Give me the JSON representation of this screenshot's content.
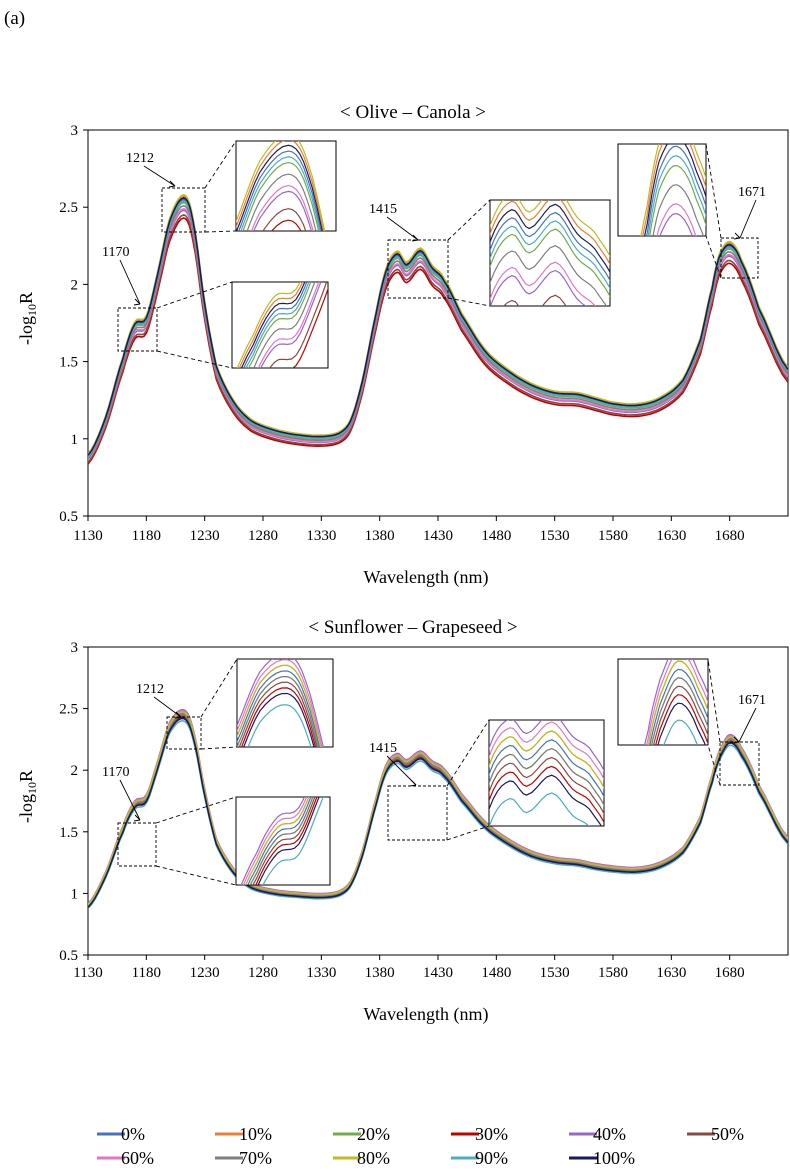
{
  "panel_label": "(a)",
  "legend_labels": [
    "0%",
    "10%",
    "20%",
    "30%",
    "40%",
    "50%",
    "60%",
    "70%",
    "80%",
    "90%",
    "100%"
  ],
  "series_colors": [
    "#4472c4",
    "#ed7d31",
    "#70ad47",
    "#c00000",
    "#9966cc",
    "#8b4a3f",
    "#e377c2",
    "#7f7f7f",
    "#bcbd22",
    "#4bacc6",
    "#1a1a5e"
  ],
  "chart_data": [
    {
      "type": "line",
      "title": "< Olive – Canola >",
      "xlabel": "Wavelength (nm)",
      "ylabel_main": "-log",
      "ylabel_sub": "10",
      "ylabel_tail": "R",
      "xlim": [
        1130,
        1730
      ],
      "ylim": [
        0.5,
        3
      ],
      "xticks": [
        "1130",
        "1180",
        "1230",
        "1280",
        "1330",
        "1380",
        "1430",
        "1480",
        "1530",
        "1580",
        "1630",
        "1680"
      ],
      "yticks": [
        "0.5",
        "1",
        "1.5",
        "2",
        "2.5",
        "3"
      ],
      "annotations": [
        "1170",
        "1212",
        "1415",
        "1671"
      ],
      "base_x": [
        1130,
        1145,
        1160,
        1170,
        1180,
        1190,
        1200,
        1212,
        1220,
        1230,
        1240,
        1255,
        1270,
        1290,
        1310,
        1330,
        1345,
        1355,
        1365,
        1375,
        1385,
        1395,
        1403,
        1415,
        1425,
        1435,
        1450,
        1470,
        1490,
        1510,
        1530,
        1550,
        1565,
        1580,
        1600,
        1620,
        1640,
        1655,
        1665,
        1671,
        1680,
        1690,
        1705,
        1730
      ],
      "base_y": [
        0.88,
        1.12,
        1.5,
        1.72,
        1.76,
        2.05,
        2.38,
        2.53,
        2.38,
        1.85,
        1.45,
        1.22,
        1.1,
        1.04,
        1.01,
        1.0,
        1.02,
        1.1,
        1.35,
        1.72,
        2.05,
        2.17,
        2.1,
        2.19,
        2.08,
        2.0,
        1.78,
        1.55,
        1.42,
        1.33,
        1.28,
        1.27,
        1.24,
        1.21,
        1.2,
        1.24,
        1.36,
        1.62,
        1.95,
        2.15,
        2.23,
        2.12,
        1.82,
        1.43
      ],
      "series": [
        {
          "name": "0%",
          "offset": 0.02
        },
        {
          "name": "10%",
          "offset": 0.04
        },
        {
          "name": "20%",
          "offset": 0.0
        },
        {
          "name": "30%",
          "offset": -0.1
        },
        {
          "name": "40%",
          "offset": -0.05
        },
        {
          "name": "50%",
          "offset": -0.08
        },
        {
          "name": "60%",
          "offset": -0.04
        },
        {
          "name": "70%",
          "offset": -0.02
        },
        {
          "name": "80%",
          "offset": 0.05
        },
        {
          "name": "90%",
          "offset": 0.01
        },
        {
          "name": "100%",
          "offset": 0.03
        }
      ]
    },
    {
      "type": "line",
      "title": "< Sunflower – Grapeseed >",
      "xlabel": "Wavelength (nm)",
      "ylabel_main": "-log",
      "ylabel_sub": "10",
      "ylabel_tail": "R",
      "xlim": [
        1130,
        1730
      ],
      "ylim": [
        0.5,
        3
      ],
      "xticks": [
        "1130",
        "1180",
        "1230",
        "1280",
        "1330",
        "1380",
        "1430",
        "1480",
        "1530",
        "1580",
        "1630",
        "1680"
      ],
      "yticks": [
        "0.5",
        "1",
        "1.5",
        "2",
        "2.5",
        "3"
      ],
      "annotations": [
        "1170",
        "1212",
        "1415",
        "1671"
      ],
      "base_x": [
        1130,
        1145,
        1160,
        1170,
        1180,
        1190,
        1200,
        1212,
        1220,
        1230,
        1240,
        1255,
        1270,
        1290,
        1310,
        1330,
        1345,
        1355,
        1365,
        1375,
        1385,
        1395,
        1403,
        1415,
        1425,
        1435,
        1450,
        1470,
        1490,
        1510,
        1530,
        1550,
        1565,
        1580,
        1600,
        1620,
        1640,
        1655,
        1665,
        1671,
        1680,
        1690,
        1705,
        1730
      ],
      "base_y": [
        0.9,
        1.15,
        1.52,
        1.72,
        1.77,
        2.05,
        2.35,
        2.45,
        2.3,
        1.82,
        1.42,
        1.18,
        1.06,
        1.01,
        0.99,
        0.98,
        1.0,
        1.08,
        1.32,
        1.68,
        2.0,
        2.1,
        2.05,
        2.12,
        2.04,
        1.98,
        1.78,
        1.56,
        1.42,
        1.32,
        1.27,
        1.25,
        1.22,
        1.2,
        1.19,
        1.23,
        1.35,
        1.6,
        1.93,
        2.12,
        2.25,
        2.15,
        1.85,
        1.43
      ],
      "series": [
        {
          "name": "0%",
          "offset": 0.01
        },
        {
          "name": "10%",
          "offset": 0.02
        },
        {
          "name": "20%",
          "offset": 0.0
        },
        {
          "name": "30%",
          "offset": -0.02
        },
        {
          "name": "40%",
          "offset": 0.04
        },
        {
          "name": "50%",
          "offset": -0.01
        },
        {
          "name": "60%",
          "offset": 0.03
        },
        {
          "name": "70%",
          "offset": 0.0
        },
        {
          "name": "80%",
          "offset": 0.02
        },
        {
          "name": "90%",
          "offset": -0.05
        },
        {
          "name": "100%",
          "offset": -0.03
        }
      ]
    }
  ]
}
